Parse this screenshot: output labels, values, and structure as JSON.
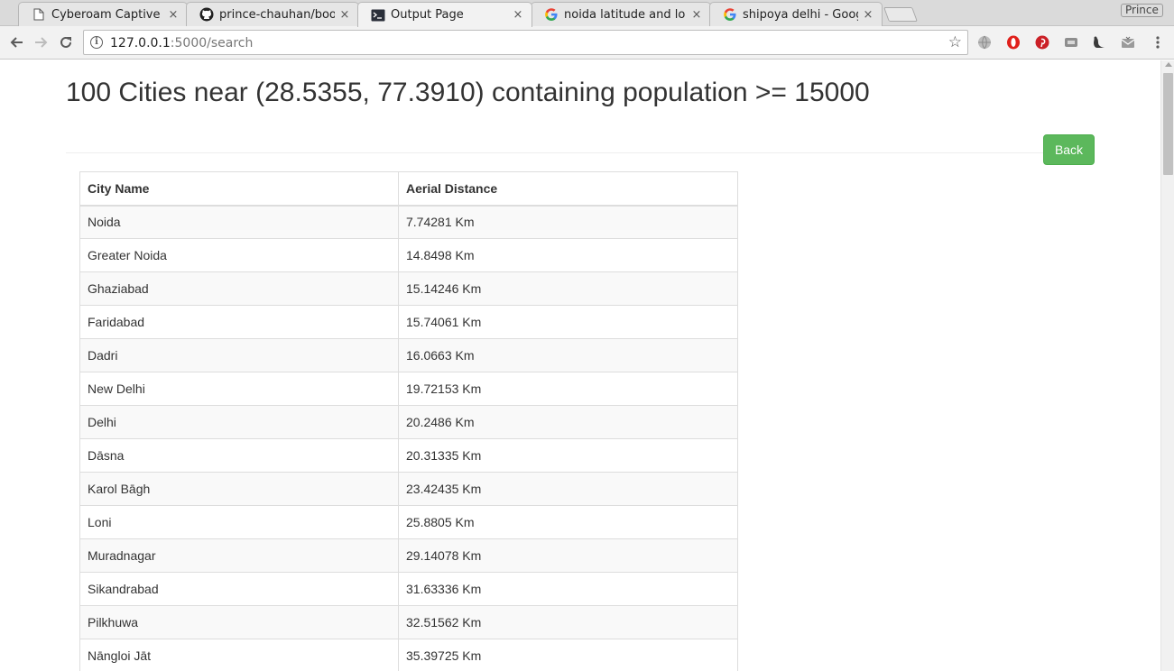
{
  "browser": {
    "tabs": [
      {
        "title": "Cyberoam Captive Po",
        "icon": "document-icon",
        "active": false
      },
      {
        "title": "prince-chauhan/book",
        "icon": "github-icon",
        "active": false
      },
      {
        "title": "Output Page",
        "icon": "terminal-icon",
        "active": true
      },
      {
        "title": "noida latitude and lo",
        "icon": "google-icon",
        "active": false
      },
      {
        "title": "shipoya delhi - Googl",
        "icon": "google-icon",
        "active": false
      }
    ],
    "close_glyph": "×",
    "profile_name": "Prince",
    "url_host": "127.0.0.1",
    "url_path": ":5000/search",
    "bookmark_glyph": "☆",
    "extensions": [
      "globe-icon",
      "opera-icon",
      "pinterest-icon",
      "cast-icon",
      "tool-icon",
      "mail-icon"
    ],
    "menu_icon": "kebab-menu-icon"
  },
  "page": {
    "title": "100 Cities near (28.5355, 77.3910) containing population >= 15000",
    "back_label": "Back",
    "columns": [
      "City Name",
      "Aerial Distance"
    ],
    "rows": [
      [
        "Noida",
        "7.74281 Km"
      ],
      [
        "Greater Noida",
        "14.8498 Km"
      ],
      [
        "Ghaziabad",
        "15.14246 Km"
      ],
      [
        "Faridabad",
        "15.74061 Km"
      ],
      [
        "Dadri",
        "16.0663 Km"
      ],
      [
        "New Delhi",
        "19.72153 Km"
      ],
      [
        "Delhi",
        "20.2486 Km"
      ],
      [
        "Dāsna",
        "20.31335 Km"
      ],
      [
        "Karol Bāgh",
        "23.42435 Km"
      ],
      [
        "Loni",
        "25.8805 Km"
      ],
      [
        "Muradnagar",
        "29.14078 Km"
      ],
      [
        "Sikandrabad",
        "31.63336 Km"
      ],
      [
        "Pilkhuwa",
        "32.51562 Km"
      ],
      [
        "Nāngloi Jāt",
        "35.39725 Km"
      ]
    ]
  },
  "colors": {
    "success_button": "#5cb85c",
    "text": "#333333",
    "table_border": "#dddddd",
    "stripe": "#f9f9f9"
  }
}
